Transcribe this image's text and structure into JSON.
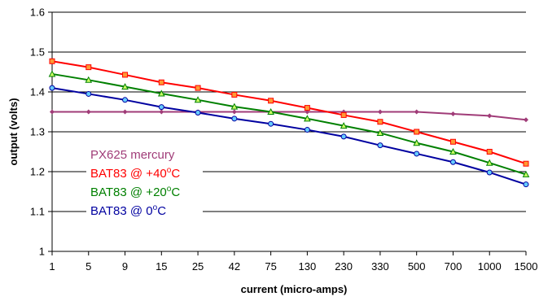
{
  "chart_data": {
    "type": "line",
    "categories": [
      "1",
      "5",
      "9",
      "15",
      "25",
      "42",
      "75",
      "130",
      "230",
      "330",
      "500",
      "700",
      "1000",
      "1500"
    ],
    "xlabel": "current   (micro-amps)",
    "ylabel": "output  (volts)",
    "ylim": [
      1,
      1.6
    ],
    "yticks": [
      "1",
      "1.1",
      "1.2",
      "1.3",
      "1.4",
      "1.5",
      "1.6"
    ],
    "grid": "horizontal",
    "legend": {
      "position": "bottom-left inside",
      "entries": [
        {
          "prefix": "PX625 mercury",
          "sup": "",
          "suffix": ""
        },
        {
          "prefix": "BAT83 @ +40",
          "sup": "o",
          "suffix": "C"
        },
        {
          "prefix": "BAT83 @ +20",
          "sup": "o",
          "suffix": "C"
        },
        {
          "prefix": "BAT83 @     0",
          "sup": "o",
          "suffix": "C"
        }
      ]
    },
    "series": [
      {
        "name": "PX625 mercury",
        "color": "#a03c78",
        "marker": "diamond",
        "values": [
          1.35,
          1.35,
          1.35,
          1.35,
          1.35,
          1.35,
          1.35,
          1.35,
          1.35,
          1.35,
          1.35,
          1.345,
          1.34,
          1.33
        ]
      },
      {
        "name": "BAT83 @ +40oC",
        "color": "#ff0000",
        "marker_fill": "#ff9933",
        "marker": "square",
        "values": [
          1.477,
          1.462,
          1.443,
          1.424,
          1.41,
          1.393,
          1.378,
          1.36,
          1.342,
          1.325,
          1.3,
          1.275,
          1.25,
          1.22
        ]
      },
      {
        "name": "BAT83 @ +20oC",
        "color": "#008000",
        "marker_fill": "#ccff66",
        "marker": "triangle",
        "values": [
          1.445,
          1.43,
          1.413,
          1.396,
          1.38,
          1.363,
          1.35,
          1.333,
          1.315,
          1.297,
          1.272,
          1.25,
          1.222,
          1.193
        ]
      },
      {
        "name": "BAT83 @ 0oC",
        "color": "#0000a0",
        "marker_fill": "#66ccff",
        "marker": "circle",
        "values": [
          1.41,
          1.395,
          1.38,
          1.362,
          1.348,
          1.333,
          1.32,
          1.305,
          1.288,
          1.266,
          1.245,
          1.224,
          1.198,
          1.168
        ]
      }
    ]
  }
}
